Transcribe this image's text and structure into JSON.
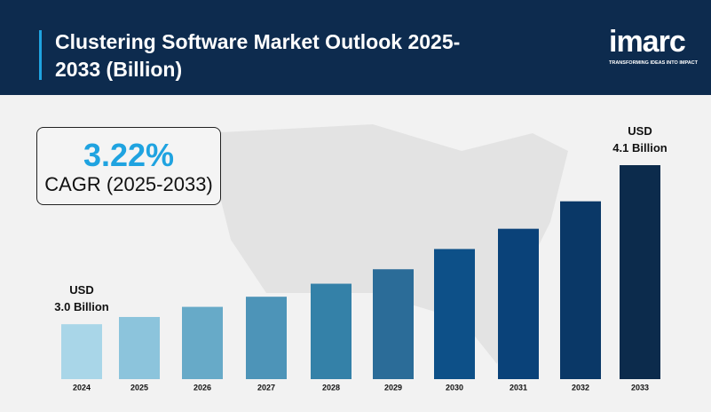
{
  "chart_data": {
    "type": "bar",
    "title": "Clustering Software Market Outlook 2025-2033 (Billion)",
    "logo": {
      "name": "imarc",
      "tagline": "TRANSFORMING IDEAS INTO IMPACT"
    },
    "cagr": {
      "value": "3.22%",
      "label": "CAGR (2025-2033)"
    },
    "categories": [
      "2024",
      "2025",
      "2026",
      "2027",
      "2028",
      "2029",
      "2030",
      "2031",
      "2032",
      "2033"
    ],
    "values": [
      3.0,
      3.05,
      3.12,
      3.19,
      3.28,
      3.38,
      3.52,
      3.66,
      3.85,
      4.1
    ],
    "value_labels": [
      [
        "USD",
        "3.0 Billion"
      ],
      null,
      null,
      null,
      null,
      null,
      null,
      null,
      null,
      [
        "USD",
        "4.1 Billion"
      ]
    ],
    "colors": [
      "#a9d6e8",
      "#8cc4dc",
      "#67aac8",
      "#4d94b8",
      "#3481a8",
      "#2b6c98",
      "#0d5088",
      "#0a4279",
      "#0a3867",
      "#0c2b4c"
    ],
    "ylim": [
      2.62,
      4.1
    ]
  }
}
